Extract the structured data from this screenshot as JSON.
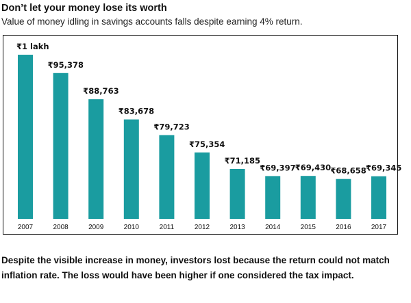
{
  "header": {
    "title": "Don’t let your money lose its worth",
    "subtitle": "Value of money idling in savings accounts falls despite earning 4% return."
  },
  "chart_data": {
    "type": "bar",
    "categories": [
      "2007",
      "2008",
      "2009",
      "2010",
      "2011",
      "2012",
      "2013",
      "2014",
      "2015",
      "2016",
      "2017"
    ],
    "values": [
      100000,
      95378,
      88763,
      83678,
      79723,
      75354,
      71185,
      69397,
      69430,
      68658,
      69345
    ],
    "data_labels": [
      "₹1 lakh",
      "₹95,378",
      "₹88,763",
      "₹83,678",
      "₹79,723",
      "₹75,354",
      "₹71,185",
      "₹69,397",
      "₹69,430",
      "₹68,658",
      "₹69,345"
    ],
    "title": "",
    "xlabel": "",
    "ylabel": "",
    "ylim": [
      58600,
      100000
    ],
    "grid": false,
    "legend": "none",
    "bar_color": "#1a9ca0"
  },
  "caption": "Despite the visible increase in money, investors lost because the return could not match inflation rate. The loss would have been higher if one considered the tax impact."
}
